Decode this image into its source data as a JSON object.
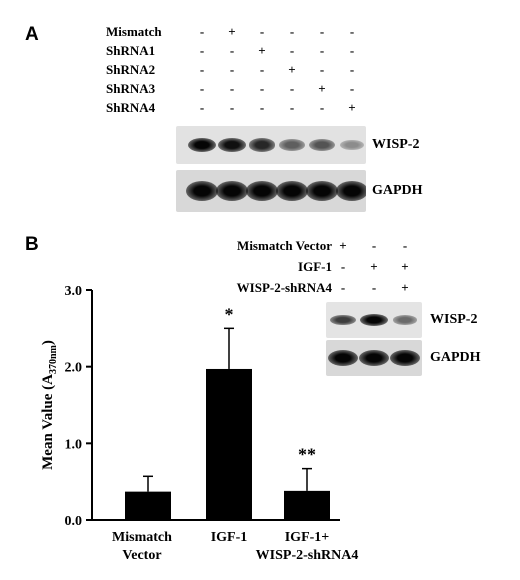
{
  "panel_a": {
    "letter": "A",
    "conditions": [
      {
        "label": "Mismatch",
        "signs": [
          "-",
          "+",
          "-",
          "-",
          "-",
          "-"
        ]
      },
      {
        "label": "ShRNA1",
        "signs": [
          "-",
          "-",
          "+",
          "-",
          "-",
          "-"
        ]
      },
      {
        "label": "ShRNA2",
        "signs": [
          "-",
          "-",
          "-",
          "+",
          "-",
          "-"
        ]
      },
      {
        "label": "ShRNA3",
        "signs": [
          "-",
          "-",
          "-",
          "-",
          "+",
          "-"
        ]
      },
      {
        "label": "ShRNA4",
        "signs": [
          "-",
          "-",
          "-",
          "-",
          "-",
          "+"
        ]
      }
    ],
    "blots": [
      {
        "label": "WISP-2",
        "band_intensity": [
          1.0,
          0.95,
          0.85,
          0.6,
          0.65,
          0.4
        ]
      },
      {
        "label": "GAPDH",
        "band_intensity": [
          1.0,
          1.0,
          1.0,
          1.0,
          1.0,
          1.0
        ]
      }
    ]
  },
  "panel_b": {
    "letter": "B",
    "conditions": [
      {
        "label": "Mismatch Vector",
        "signs": [
          "+",
          "-",
          "-"
        ]
      },
      {
        "label": "IGF-1",
        "signs": [
          "-",
          "+",
          "+"
        ]
      },
      {
        "label": "WISP-2-shRNA4",
        "signs": [
          "-",
          "-",
          "+"
        ]
      }
    ],
    "blots": [
      {
        "label": "WISP-2",
        "band_intensity": [
          0.75,
          1.0,
          0.55
        ]
      },
      {
        "label": "GAPDH",
        "band_intensity": [
          1.0,
          1.0,
          1.0
        ]
      }
    ]
  },
  "chart_data": {
    "type": "bar",
    "categories": [
      [
        "Mismatch",
        "Vector"
      ],
      [
        "IGF-1"
      ],
      [
        "IGF-1+",
        "WISP-2-shRNA4"
      ]
    ],
    "values": [
      0.37,
      1.97,
      0.38
    ],
    "errors": [
      0.2,
      0.53,
      0.29
    ],
    "annotations": [
      "",
      "*",
      "**"
    ],
    "ylabel_main": "Mean Value (A",
    "ylabel_sub": "370nm",
    "ylabel_close": ")",
    "ylim": [
      0,
      3
    ],
    "yticks": [
      "0.0",
      "1.0",
      "2.0",
      "3.0"
    ],
    "bar_color": "#000000"
  }
}
